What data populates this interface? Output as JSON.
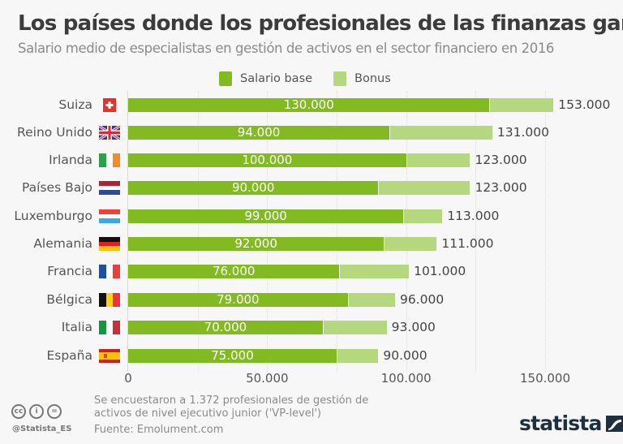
{
  "header": {
    "title": "Los países donde los profesionales de las finanzas ganan más",
    "subtitle": "Salario medio de especialistas en gestión de activos en el sector financiero en 2016"
  },
  "legend": [
    {
      "label": "Salario base",
      "color": "#82bb21"
    },
    {
      "label": "Bonus",
      "color": "#b5d77e"
    }
  ],
  "chart_data": {
    "type": "bar",
    "orientation": "horizontal",
    "stacked": true,
    "title": "Los países donde los profesionales de las finanzas ganan más",
    "subtitle": "Salario medio de especialistas en gestión de activos en el sector financiero en 2016",
    "categories": [
      "Suiza",
      "Reino Unido",
      "Irlanda",
      "Países Bajo",
      "Luxemburgo",
      "Alemania",
      "Francia",
      "Bélgica",
      "Italia",
      "España"
    ],
    "series": [
      {
        "name": "Salario base",
        "color": "#82bb21",
        "values": [
          130000,
          94000,
          100000,
          90000,
          99000,
          92000,
          76000,
          79000,
          70000,
          75000
        ]
      },
      {
        "name": "Bonus",
        "color": "#b5d77e",
        "values": [
          23000,
          37000,
          23000,
          33000,
          14000,
          19000,
          25000,
          17000,
          23000,
          15000
        ]
      }
    ],
    "totals": [
      153000,
      131000,
      123000,
      123000,
      113000,
      111000,
      101000,
      96000,
      93000,
      90000
    ],
    "base_labels": [
      "130.000",
      "94.000",
      "100.000",
      "90.000",
      "99.000",
      "92.000",
      "76.000",
      "79.000",
      "70.000",
      "75.000"
    ],
    "total_labels": [
      "153.000",
      "131.000",
      "123.000",
      "123.000",
      "113.000",
      "111.000",
      "101.000",
      "96.000",
      "93.000",
      "90.000"
    ],
    "xlabel": "",
    "ylabel": "",
    "xlim": [
      0,
      165000
    ],
    "xticks": [
      0,
      50000,
      100000,
      150000
    ],
    "xtick_labels": [
      "0",
      "50.000",
      "100.000",
      "150.000"
    ],
    "grid": true,
    "legend_position": "top"
  },
  "footer": {
    "note_line1": "Se encuestaron a 1.372 profesionales de gestión de",
    "note_line2": "activos de nivel ejecutivo junior ('VP-level')",
    "source": "Fuente: Emolument.com",
    "handle": "@Statista_ES",
    "license_icons": [
      "cc",
      "i",
      "="
    ],
    "logo": "statista"
  }
}
